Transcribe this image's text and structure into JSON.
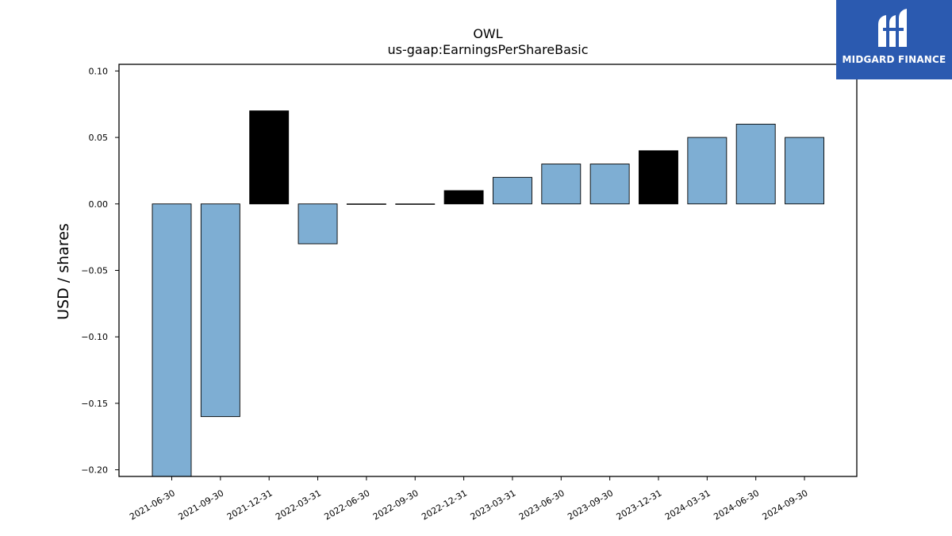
{
  "chart_data": {
    "type": "bar",
    "title": "OWL",
    "subtitle": "us-gaap:EarningsPerShareBasic",
    "xlabel": "",
    "ylabel": "USD / shares",
    "ylim": [
      -0.205,
      0.105
    ],
    "yticks": [
      "0.10",
      "0.05",
      "0.00",
      "−0.05",
      "−0.10",
      "−0.15",
      "−0.20"
    ],
    "ytick_values": [
      0.1,
      0.05,
      0.0,
      -0.05,
      -0.1,
      -0.15,
      -0.2
    ],
    "categories": [
      "2021-06-30",
      "2021-09-30",
      "2021-12-31",
      "2022-03-31",
      "2022-06-30",
      "2022-09-30",
      "2022-12-31",
      "2023-03-31",
      "2023-06-30",
      "2023-09-30",
      "2023-12-31",
      "2024-03-31",
      "2024-06-30",
      "2024-09-30"
    ],
    "values": [
      -0.21,
      -0.16,
      0.07,
      -0.03,
      0.0,
      0.0,
      0.01,
      0.02,
      0.03,
      0.03,
      0.04,
      0.05,
      0.06,
      0.05
    ],
    "bar_colors": [
      "#7eaed3",
      "#7eaed3",
      "#000000",
      "#7eaed3",
      "#7eaed3",
      "#7eaed3",
      "#000000",
      "#7eaed3",
      "#7eaed3",
      "#7eaed3",
      "#000000",
      "#7eaed3",
      "#7eaed3",
      "#7eaed3"
    ],
    "grid": false
  },
  "logo": {
    "text": "MIDGARD FINANCE",
    "background": "#2b5ab0",
    "icon": "midgard-logo-icon"
  }
}
